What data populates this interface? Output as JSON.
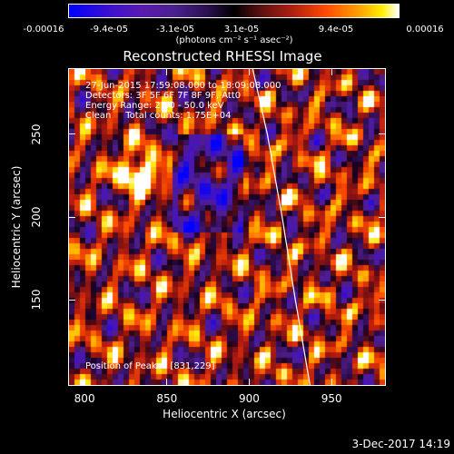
{
  "colorbar": {
    "ticks": [
      "-0.00016",
      "-9.4e-05",
      "-3.1e-05",
      "3.1e-05",
      "9.4e-05",
      "0.00016"
    ],
    "unit": "(photons cm⁻² s⁻¹ asec⁻²)"
  },
  "chart_data": {
    "type": "heatmap",
    "title": "Reconstructed RHESSI Image",
    "xlabel": "Heliocentric X (arcsec)",
    "ylabel": "Heliocentric Y (arcsec)",
    "xlim": [
      790,
      983
    ],
    "ylim": [
      98,
      290
    ],
    "xticks": [
      "800",
      "850",
      "900",
      "950"
    ],
    "yticks": [
      "150",
      "200",
      "250"
    ],
    "xtick_values": [
      800,
      850,
      900,
      950
    ],
    "ytick_values": [
      150,
      200,
      250
    ],
    "peak": [
      831,
      229
    ],
    "limb_points": [
      [
        902,
        290
      ],
      [
        911,
        250
      ],
      [
        920,
        200
      ],
      [
        928,
        150
      ],
      [
        937,
        98
      ]
    ],
    "annotations": [
      "27-Jun-2015 17:59:08.000 to 18:09:08.000",
      "Detectors: 3F 5F 6F 7F 8F 9F, Att0",
      "Energy Range: 25.0 - 50.0 keV",
      "Clean     Total counts: 1.75E+04"
    ],
    "peak_label": "Position of Peak = [831,229]"
  },
  "footer": {
    "date": "3-Dec-2017 14:19"
  }
}
